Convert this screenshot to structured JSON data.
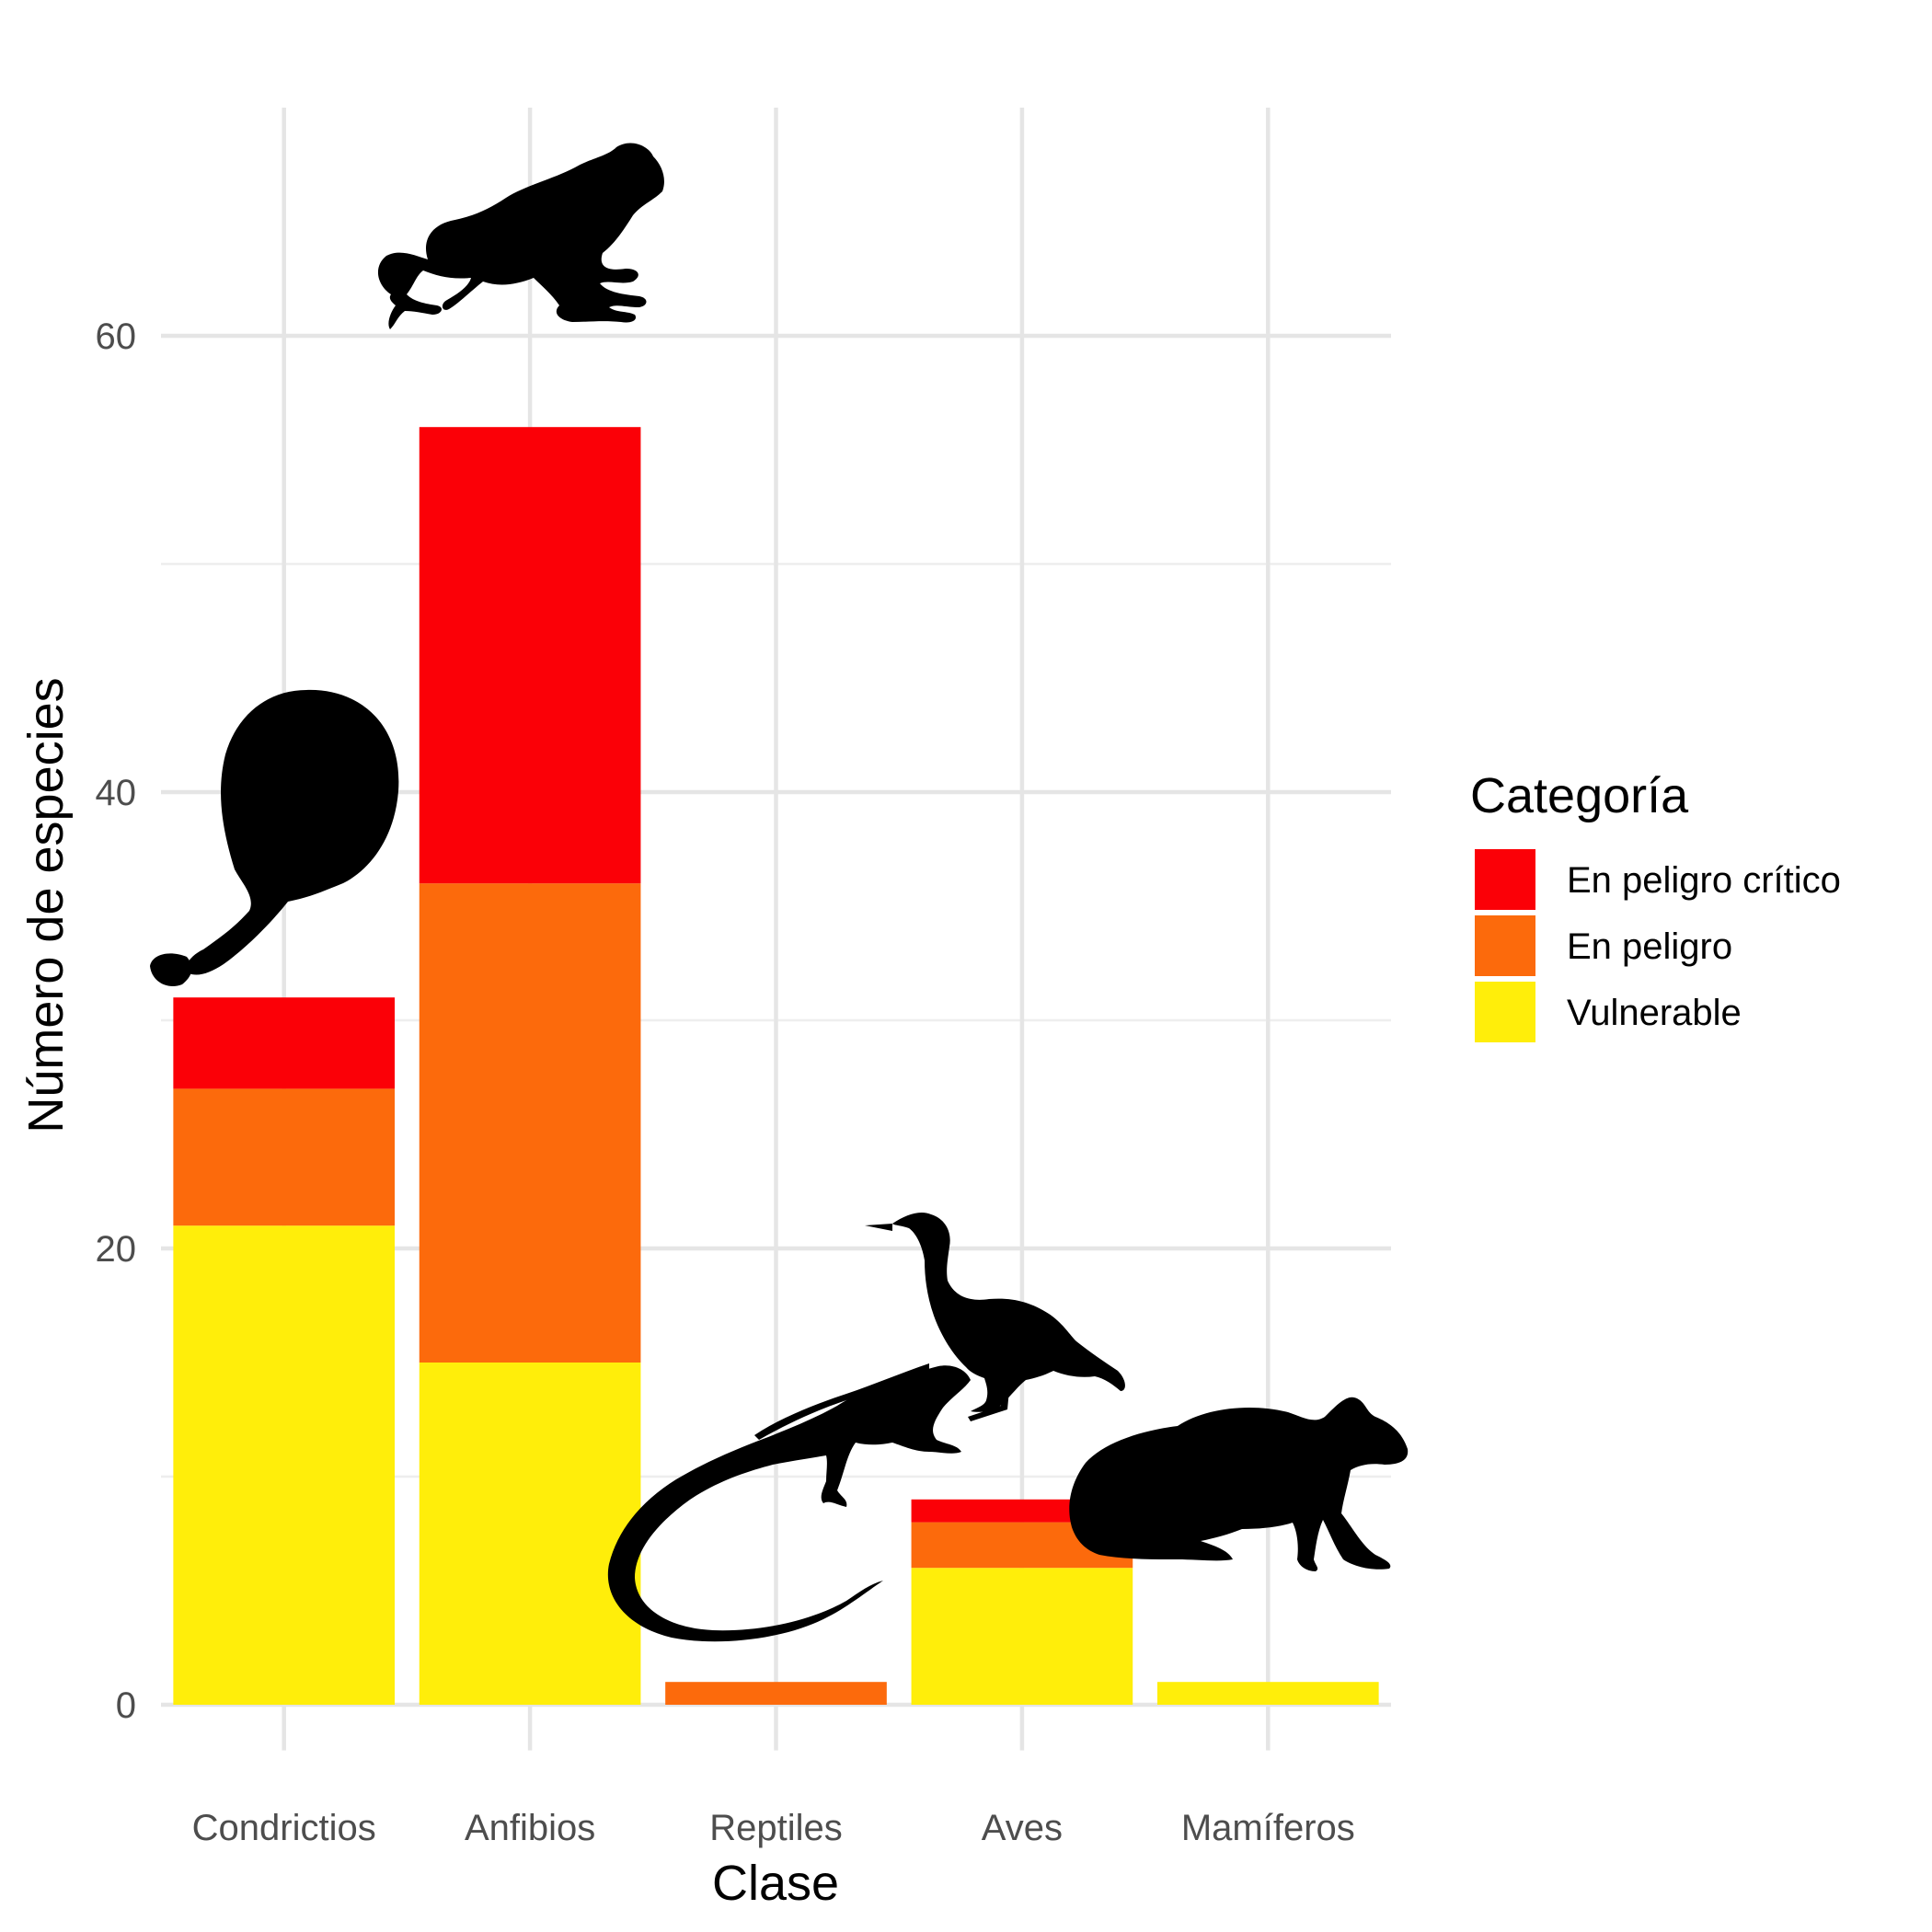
{
  "chart_data": {
    "type": "bar",
    "stacked": true,
    "categories": [
      "Condrictios",
      "Anfibios",
      "Reptiles",
      "Aves",
      "Mamíferos"
    ],
    "series": [
      {
        "name": "Vulnerable",
        "color": "#FFEE0A",
        "values": [
          21,
          15,
          0,
          6,
          1
        ]
      },
      {
        "name": "En peligro",
        "color": "#FC6A0C",
        "values": [
          6,
          21,
          1,
          2,
          0
        ]
      },
      {
        "name": "En peligro crítico",
        "color": "#FB0007",
        "values": [
          4,
          20,
          0,
          1,
          0
        ]
      }
    ],
    "xlabel": "Clase",
    "ylabel": "Número de especies",
    "ylim": [
      -2,
      70
    ],
    "yticks": [
      0,
      20,
      40,
      60
    ],
    "grid": true,
    "legend": {
      "title": "Categoría",
      "position": "right",
      "entries": [
        "En peligro crítico",
        "En peligro",
        "Vulnerable"
      ]
    },
    "silhouettes": [
      {
        "category": "Condrictios",
        "icon": "skate-silhouette-icon"
      },
      {
        "category": "Anfibios",
        "icon": "frog-silhouette-icon"
      },
      {
        "category": "Reptiles",
        "icon": "iguana-silhouette-icon"
      },
      {
        "category": "Aves",
        "icon": "bird-silhouette-icon"
      },
      {
        "category": "Mamíferos",
        "icon": "rodent-silhouette-icon"
      }
    ]
  }
}
